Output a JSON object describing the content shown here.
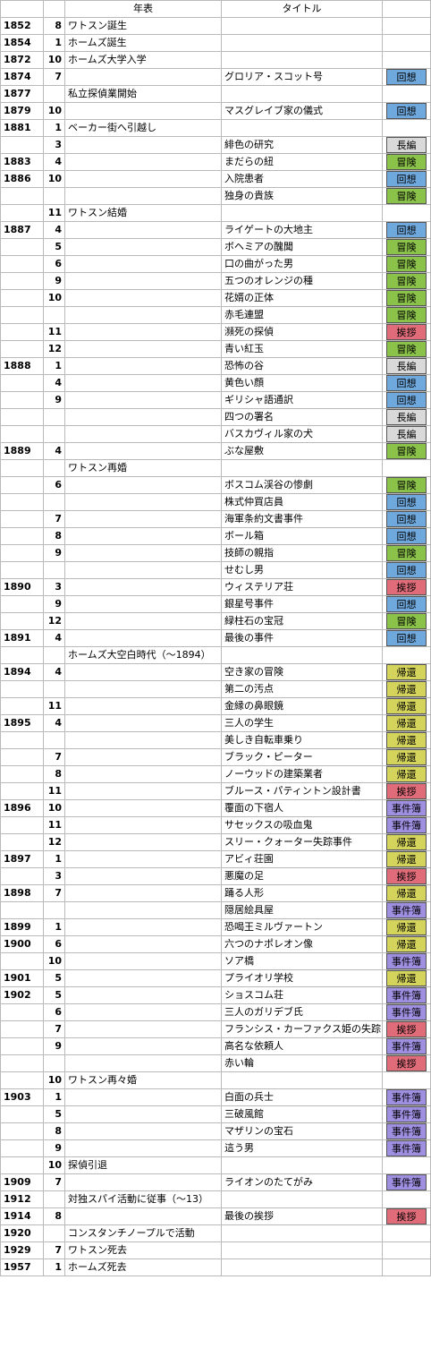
{
  "header": {
    "col_event": "年表",
    "col_title": "タイトル"
  },
  "colors": {
    "回想": "#6fa8dc",
    "長編": "#d9d9d9",
    "冒険": "#8bc34a",
    "挨拶": "#e06c7a",
    "帰還": "#d4d45c",
    "事件簿": "#9f8fe0"
  },
  "rows": [
    {
      "year": "1852",
      "month": "8",
      "event": "ワトスン誕生",
      "title": "",
      "cat": ""
    },
    {
      "year": "1854",
      "month": "1",
      "event": "ホームズ誕生",
      "title": "",
      "cat": ""
    },
    {
      "year": "1872",
      "month": "10",
      "event": "ホームズ大学入学",
      "title": "",
      "cat": ""
    },
    {
      "year": "1874",
      "month": "7",
      "event": "",
      "title": "グロリア・スコット号",
      "cat": "回想"
    },
    {
      "year": "1877",
      "month": "",
      "event": "私立探偵業開始",
      "title": "",
      "cat": ""
    },
    {
      "year": "1879",
      "month": "10",
      "event": "",
      "title": "マスグレイブ家の儀式",
      "cat": "回想"
    },
    {
      "year": "1881",
      "month": "1",
      "event": "ベーカー街へ引越し",
      "title": "",
      "cat": ""
    },
    {
      "year": "",
      "month": "3",
      "event": "",
      "title": "緋色の研究",
      "cat": "長編"
    },
    {
      "year": "1883",
      "month": "4",
      "event": "",
      "title": "まだらの紐",
      "cat": "冒険"
    },
    {
      "year": "1886",
      "month": "10",
      "event": "",
      "title": "入院患者",
      "cat": "回想"
    },
    {
      "year": "",
      "month": "",
      "event": "",
      "title": "独身の貴族",
      "cat": "冒険"
    },
    {
      "year": "",
      "month": "11",
      "event": "ワトスン結婚",
      "title": "",
      "cat": ""
    },
    {
      "year": "1887",
      "month": "4",
      "event": "",
      "title": "ライゲートの大地主",
      "cat": "回想"
    },
    {
      "year": "",
      "month": "5",
      "event": "",
      "title": "ボヘミアの醜聞",
      "cat": "冒険"
    },
    {
      "year": "",
      "month": "6",
      "event": "",
      "title": "口の曲がった男",
      "cat": "冒険"
    },
    {
      "year": "",
      "month": "9",
      "event": "",
      "title": "五つのオレンジの種",
      "cat": "冒険"
    },
    {
      "year": "",
      "month": "10",
      "event": "",
      "title": "花婿の正体",
      "cat": "冒険"
    },
    {
      "year": "",
      "month": "",
      "event": "",
      "title": "赤毛連盟",
      "cat": "冒険"
    },
    {
      "year": "",
      "month": "11",
      "event": "",
      "title": "瀕死の探偵",
      "cat": "挨拶"
    },
    {
      "year": "",
      "month": "12",
      "event": "",
      "title": "青い紅玉",
      "cat": "冒険"
    },
    {
      "year": "1888",
      "month": "1",
      "event": "",
      "title": "恐怖の谷",
      "cat": "長編"
    },
    {
      "year": "",
      "month": "4",
      "event": "",
      "title": "黄色い顔",
      "cat": "回想"
    },
    {
      "year": "",
      "month": "9",
      "event": "",
      "title": "ギリシャ語通訳",
      "cat": "回想"
    },
    {
      "year": "",
      "month": "",
      "event": "",
      "title": "四つの署名",
      "cat": "長編"
    },
    {
      "year": "",
      "month": "",
      "event": "",
      "title": "バスカヴィル家の犬",
      "cat": "長編"
    },
    {
      "year": "1889",
      "month": "4",
      "event": "",
      "title": "ぶな屋敷",
      "cat": "冒険"
    },
    {
      "year": "",
      "month": "",
      "event": "ワトスン再婚",
      "title": "",
      "cat": ""
    },
    {
      "year": "",
      "month": "6",
      "event": "",
      "title": "ボスコム渓谷の惨劇",
      "cat": "冒険"
    },
    {
      "year": "",
      "month": "",
      "event": "",
      "title": "株式仲買店員",
      "cat": "回想"
    },
    {
      "year": "",
      "month": "7",
      "event": "",
      "title": "海軍条約文書事件",
      "cat": "回想"
    },
    {
      "year": "",
      "month": "8",
      "event": "",
      "title": "ボール箱",
      "cat": "回想"
    },
    {
      "year": "",
      "month": "9",
      "event": "",
      "title": "技師の親指",
      "cat": "冒険"
    },
    {
      "year": "",
      "month": "",
      "event": "",
      "title": "せむし男",
      "cat": "回想"
    },
    {
      "year": "1890",
      "month": "3",
      "event": "",
      "title": "ウィステリア荘",
      "cat": "挨拶"
    },
    {
      "year": "",
      "month": "9",
      "event": "",
      "title": "銀星号事件",
      "cat": "回想"
    },
    {
      "year": "",
      "month": "12",
      "event": "",
      "title": "緑柱石の宝冠",
      "cat": "冒険"
    },
    {
      "year": "1891",
      "month": "4",
      "event": "",
      "title": "最後の事件",
      "cat": "回想"
    },
    {
      "year": "",
      "month": "",
      "event": "ホームズ大空白時代（〜1894）",
      "title": "",
      "cat": ""
    },
    {
      "year": "1894",
      "month": "4",
      "event": "",
      "title": "空き家の冒険",
      "cat": "帰還"
    },
    {
      "year": "",
      "month": "",
      "event": "",
      "title": "第二の汚点",
      "cat": "帰還"
    },
    {
      "year": "",
      "month": "11",
      "event": "",
      "title": "金縁の鼻眼鏡",
      "cat": "帰還"
    },
    {
      "year": "1895",
      "month": "4",
      "event": "",
      "title": "三人の学生",
      "cat": "帰還"
    },
    {
      "year": "",
      "month": "",
      "event": "",
      "title": "美しき自転車乗り",
      "cat": "帰還"
    },
    {
      "year": "",
      "month": "7",
      "event": "",
      "title": "ブラック・ピーター",
      "cat": "帰還"
    },
    {
      "year": "",
      "month": "8",
      "event": "",
      "title": "ノーウッドの建築業者",
      "cat": "帰還"
    },
    {
      "year": "",
      "month": "11",
      "event": "",
      "title": "ブルース・パティントン設計書",
      "cat": "挨拶"
    },
    {
      "year": "1896",
      "month": "10",
      "event": "",
      "title": "覆面の下宿人",
      "cat": "事件簿"
    },
    {
      "year": "",
      "month": "11",
      "event": "",
      "title": "サセックスの吸血鬼",
      "cat": "事件簿"
    },
    {
      "year": "",
      "month": "12",
      "event": "",
      "title": "スリー・クォーター失踪事件",
      "cat": "帰還"
    },
    {
      "year": "1897",
      "month": "1",
      "event": "",
      "title": "アビィ荘園",
      "cat": "帰還"
    },
    {
      "year": "",
      "month": "3",
      "event": "",
      "title": "悪魔の足",
      "cat": "挨拶"
    },
    {
      "year": "1898",
      "month": "7",
      "event": "",
      "title": "踊る人形",
      "cat": "帰還"
    },
    {
      "year": "",
      "month": "",
      "event": "",
      "title": "隠居絵具屋",
      "cat": "事件簿"
    },
    {
      "year": "1899",
      "month": "1",
      "event": "",
      "title": "恐喝王ミルヴァートン",
      "cat": "帰還"
    },
    {
      "year": "1900",
      "month": "6",
      "event": "",
      "title": "六つのナポレオン像",
      "cat": "帰還"
    },
    {
      "year": "",
      "month": "10",
      "event": "",
      "title": "ソア橋",
      "cat": "事件簿"
    },
    {
      "year": "1901",
      "month": "5",
      "event": "",
      "title": "プライオリ学校",
      "cat": "帰還"
    },
    {
      "year": "1902",
      "month": "5",
      "event": "",
      "title": "ショスコム荘",
      "cat": "事件簿"
    },
    {
      "year": "",
      "month": "6",
      "event": "",
      "title": "三人のガリデブ氏",
      "cat": "事件簿"
    },
    {
      "year": "",
      "month": "7",
      "event": "",
      "title": "フランシス・カーファクス姫の失踪",
      "cat": "挨拶"
    },
    {
      "year": "",
      "month": "9",
      "event": "",
      "title": "高名な依頼人",
      "cat": "事件簿"
    },
    {
      "year": "",
      "month": "",
      "event": "",
      "title": "赤い輪",
      "cat": "挨拶"
    },
    {
      "year": "",
      "month": "10",
      "event": "ワトスン再々婚",
      "title": "",
      "cat": ""
    },
    {
      "year": "1903",
      "month": "1",
      "event": "",
      "title": "白面の兵士",
      "cat": "事件簿"
    },
    {
      "year": "",
      "month": "5",
      "event": "",
      "title": "三破風館",
      "cat": "事件簿"
    },
    {
      "year": "",
      "month": "8",
      "event": "",
      "title": "マザリンの宝石",
      "cat": "事件簿"
    },
    {
      "year": "",
      "month": "9",
      "event": "",
      "title": "這う男",
      "cat": "事件簿"
    },
    {
      "year": "",
      "month": "10",
      "event": "探偵引退",
      "title": "",
      "cat": ""
    },
    {
      "year": "1909",
      "month": "7",
      "event": "",
      "title": "ライオンのたてがみ",
      "cat": "事件簿"
    },
    {
      "year": "1912",
      "month": "",
      "event": "対独スパイ活動に従事（〜13）",
      "title": "",
      "cat": ""
    },
    {
      "year": "1914",
      "month": "8",
      "event": "",
      "title": "最後の挨拶",
      "cat": "挨拶"
    },
    {
      "year": "1920",
      "month": "",
      "event": "コンスタンチノープルで活動",
      "title": "",
      "cat": ""
    },
    {
      "year": "1929",
      "month": "7",
      "event": "ワトスン死去",
      "title": "",
      "cat": ""
    },
    {
      "year": "1957",
      "month": "1",
      "event": "ホームズ死去",
      "title": "",
      "cat": ""
    }
  ]
}
